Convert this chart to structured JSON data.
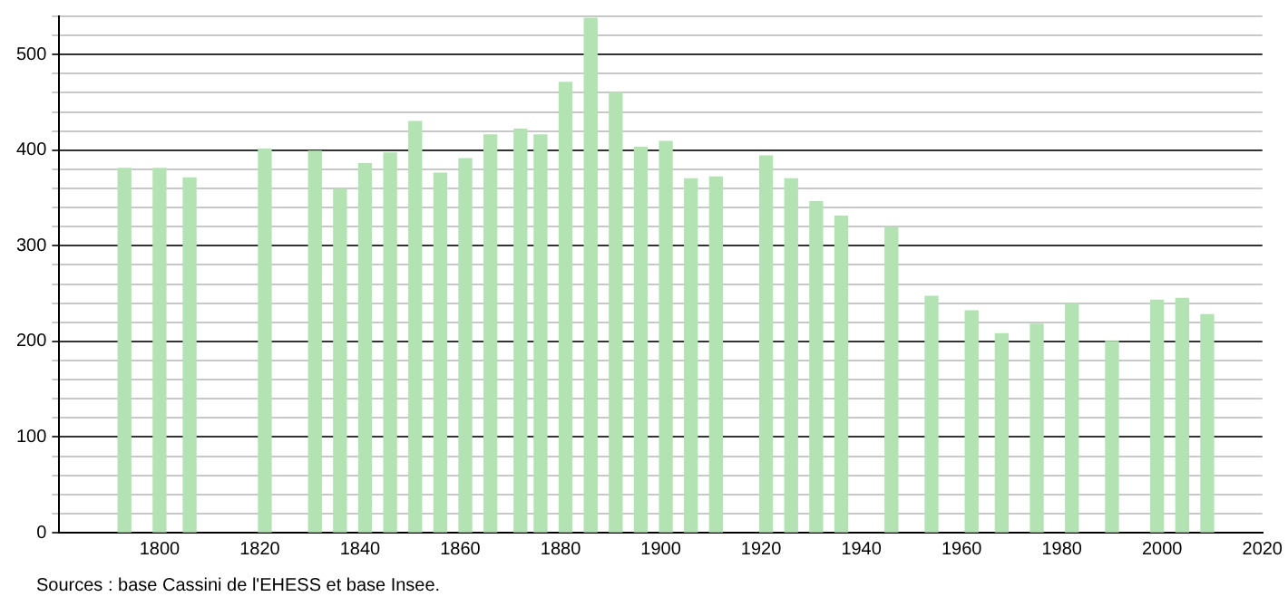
{
  "chart_data": {
    "type": "bar",
    "x": [
      1793,
      1800,
      1806,
      1821,
      1831,
      1836,
      1841,
      1846,
      1851,
      1856,
      1861,
      1866,
      1872,
      1876,
      1881,
      1886,
      1891,
      1896,
      1901,
      1906,
      1911,
      1921,
      1926,
      1931,
      1936,
      1946,
      1954,
      1962,
      1968,
      1975,
      1982,
      1990,
      1999,
      2004,
      2009
    ],
    "values": [
      381,
      381,
      371,
      401,
      399,
      359,
      386,
      397,
      430,
      376,
      391,
      416,
      422,
      416,
      471,
      538,
      460,
      403,
      409,
      370,
      372,
      394,
      370,
      346,
      331,
      319,
      247,
      232,
      208,
      218,
      239,
      200,
      243,
      245,
      228
    ],
    "color": "#b3e2b3",
    "xlim": [
      1780,
      2020
    ],
    "xticks": [
      1800,
      1820,
      1840,
      1860,
      1880,
      1900,
      1920,
      1940,
      1960,
      1980,
      2000,
      2020
    ],
    "ylim": [
      0,
      540
    ],
    "yticks": [
      0,
      {
        "value": 20,
        "label": null
      },
      {
        "value": 40,
        "label": null
      },
      {
        "value": 60,
        "label": null
      },
      {
        "value": 80,
        "label": null
      },
      100,
      {
        "value": 120,
        "label": null
      },
      {
        "value": 140,
        "label": null
      },
      {
        "value": 160,
        "label": null
      },
      {
        "value": 180,
        "label": null
      },
      200,
      {
        "value": 220,
        "label": null
      },
      {
        "value": 240,
        "label": null
      },
      {
        "value": 260,
        "label": null
      },
      {
        "value": 280,
        "label": null
      },
      300,
      {
        "value": 320,
        "label": null
      },
      {
        "value": 340,
        "label": null
      },
      {
        "value": 360,
        "label": null
      },
      {
        "value": 380,
        "label": null
      },
      400,
      {
        "value": 420,
        "label": null
      },
      {
        "value": 440,
        "label": null
      },
      {
        "value": 460,
        "label": null
      },
      {
        "value": 480,
        "label": null
      },
      500,
      {
        "value": 520,
        "label": null
      },
      {
        "value": 540,
        "label": null
      }
    ],
    "grid": "y",
    "legend": false,
    "annotations": [
      "Sources : base Cassini de l'EHESS et base Insee."
    ]
  }
}
